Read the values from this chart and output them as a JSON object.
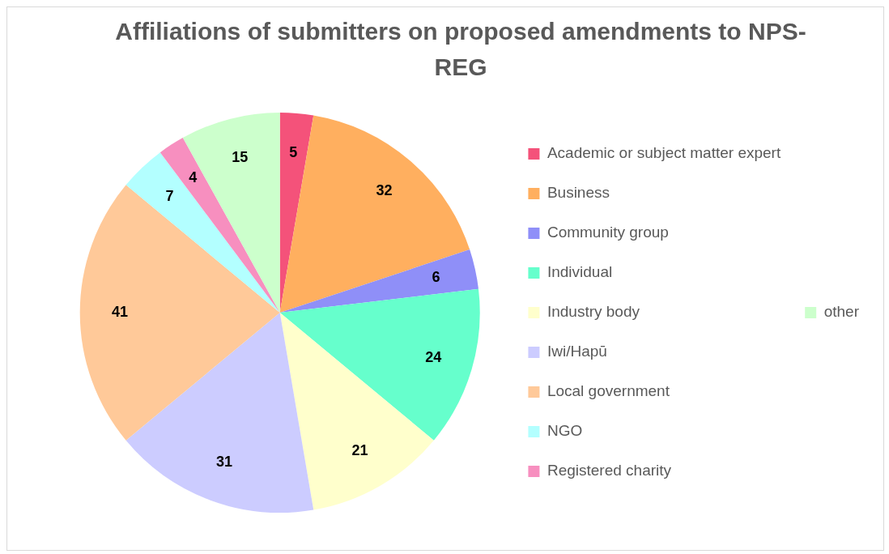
{
  "chart_data": {
    "type": "pie",
    "title": "Affiliations of submitters on proposed amendments to NPS-REG",
    "categories": [
      "Academic or subject matter expert",
      "Business",
      "Community group",
      "Individual",
      "Industry body",
      "Iwi/Hapū",
      "Local government",
      "NGO",
      "Registered charity",
      "other"
    ],
    "values": [
      5,
      32,
      6,
      24,
      21,
      31,
      41,
      7,
      4,
      15
    ],
    "colors": [
      "#f4527a",
      "#ffaf5f",
      "#8f8ff8",
      "#66ffcc",
      "#ffffcc",
      "#ccccff",
      "#ffc999",
      "#b3ffff",
      "#f78fbf",
      "#ccffcc"
    ],
    "data_labels": true,
    "legend": "right"
  }
}
